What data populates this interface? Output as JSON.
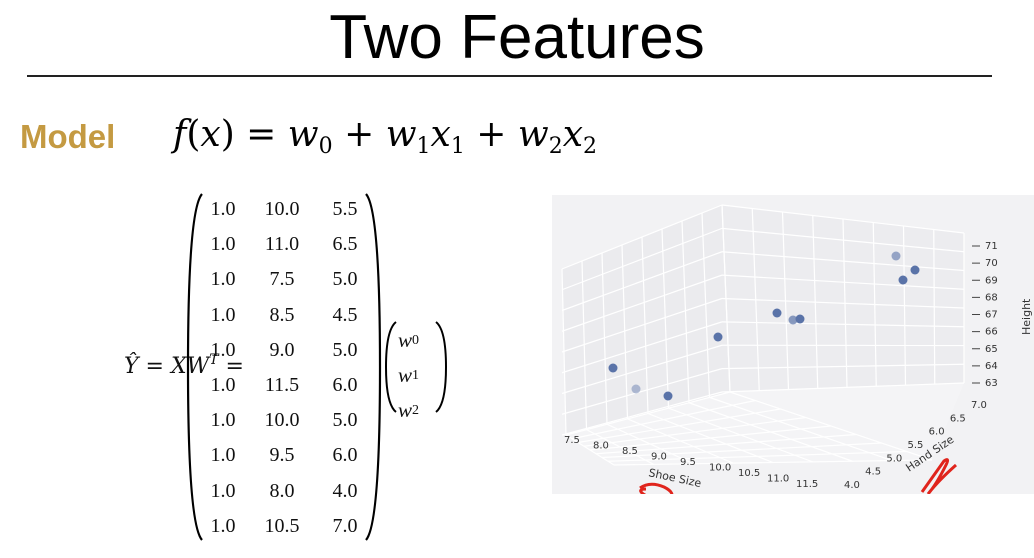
{
  "slide": {
    "title": "Two Features",
    "model_label": "Model"
  },
  "equation": {
    "lhs": "Ŷ = XW",
    "lhs_sup": "T",
    "lhs_eq": " ="
  },
  "matrix_X": [
    [
      "1.0",
      "10.0",
      "5.5"
    ],
    [
      "1.0",
      "11.0",
      "6.5"
    ],
    [
      "1.0",
      "7.5",
      "5.0"
    ],
    [
      "1.0",
      "8.5",
      "4.5"
    ],
    [
      "1.0",
      "9.0",
      "5.0"
    ],
    [
      "1.0",
      "11.5",
      "6.0"
    ],
    [
      "1.0",
      "10.0",
      "5.0"
    ],
    [
      "1.0",
      "9.5",
      "6.0"
    ],
    [
      "1.0",
      "8.0",
      "4.0"
    ],
    [
      "1.0",
      "10.5",
      "7.0"
    ]
  ],
  "weights": [
    "0",
    "1",
    "2"
  ],
  "plot": {
    "xlabel": "Shoe Size",
    "ylabel": "Hand Size",
    "zlabel": "Height",
    "x_ticks": [
      "7.5",
      "8.0",
      "8.5",
      "9.0",
      "9.5",
      "10.0",
      "10.5",
      "11.0",
      "11.5"
    ],
    "y_ticks": [
      "4.0",
      "4.5",
      "5.0",
      "5.5",
      "6.0",
      "6.5",
      "7.0"
    ],
    "z_ticks": [
      "63",
      "64",
      "65",
      "66",
      "67",
      "68",
      "69",
      "70",
      "71"
    ],
    "point_color": "#5a73a8",
    "annotation_color": "#e0241c"
  },
  "chart_data": {
    "type": "scatter",
    "xlabel": "Shoe Size",
    "ylabel": "Hand Size",
    "zlabel": "Height",
    "xlim": [
      7.5,
      11.5
    ],
    "ylim": [
      4.0,
      7.0
    ],
    "zlim": [
      63,
      71
    ]
  }
}
